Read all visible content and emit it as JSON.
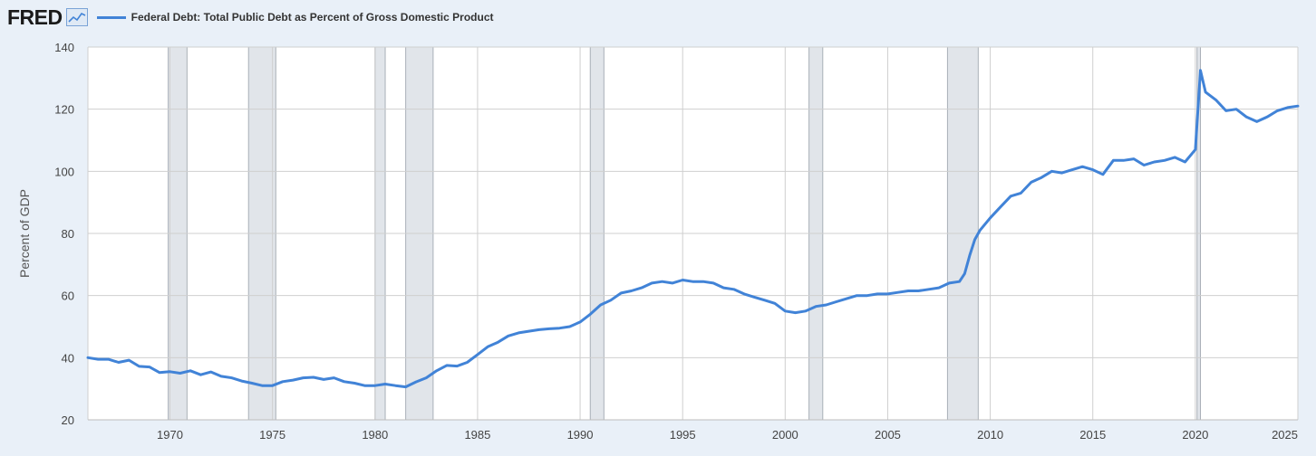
{
  "app": {
    "logo_text": "FRED"
  },
  "chart_data": {
    "type": "line",
    "title": "",
    "xlabel": "",
    "ylabel": "Percent of GDP",
    "xlim": [
      1966,
      2025
    ],
    "ylim": [
      20,
      140
    ],
    "grid": true,
    "legend_position": "top-left",
    "color": "#4183d7",
    "x_ticks": [
      "1970",
      "1975",
      "1980",
      "1985",
      "1990",
      "1995",
      "2000",
      "2005",
      "2010",
      "2015",
      "2020",
      "2025"
    ],
    "y_ticks": [
      "20",
      "40",
      "60",
      "80",
      "100",
      "120",
      "140"
    ],
    "recessions": [
      [
        "1969-12-01",
        "1970-11-01"
      ],
      [
        "1973-11-01",
        "1975-03-01"
      ],
      [
        "1980-01-01",
        "1980-07-01"
      ],
      [
        "1981-07-01",
        "1982-11-01"
      ],
      [
        "1990-07-01",
        "1991-03-01"
      ],
      [
        "2001-03-01",
        "2001-11-01"
      ],
      [
        "2007-12-01",
        "2009-06-01"
      ],
      [
        "2020-02-01",
        "2020-04-01"
      ]
    ],
    "series": [
      {
        "name": "Federal Debt: Total Public Debt as Percent of Gross Domestic Product",
        "x": [
          "1966-01-01",
          "1966-07-01",
          "1967-01-01",
          "1967-07-01",
          "1968-01-01",
          "1968-07-01",
          "1969-01-01",
          "1969-07-01",
          "1970-01-01",
          "1970-07-01",
          "1971-01-01",
          "1971-07-01",
          "1972-01-01",
          "1972-07-01",
          "1973-01-01",
          "1973-07-01",
          "1974-01-01",
          "1974-07-01",
          "1975-01-01",
          "1975-07-01",
          "1976-01-01",
          "1976-07-01",
          "1977-01-01",
          "1977-07-01",
          "1978-01-01",
          "1978-07-01",
          "1979-01-01",
          "1979-07-01",
          "1980-01-01",
          "1980-07-01",
          "1981-01-01",
          "1981-07-01",
          "1982-01-01",
          "1982-07-01",
          "1983-01-01",
          "1983-07-01",
          "1984-01-01",
          "1984-07-01",
          "1985-01-01",
          "1985-07-01",
          "1986-01-01",
          "1986-07-01",
          "1987-01-01",
          "1987-07-01",
          "1988-01-01",
          "1988-07-01",
          "1989-01-01",
          "1989-07-01",
          "1990-01-01",
          "1990-07-01",
          "1991-01-01",
          "1991-07-01",
          "1992-01-01",
          "1992-07-01",
          "1993-01-01",
          "1993-07-01",
          "1994-01-01",
          "1994-07-01",
          "1995-01-01",
          "1995-07-01",
          "1996-01-01",
          "1996-07-01",
          "1997-01-01",
          "1997-07-01",
          "1998-01-01",
          "1998-07-01",
          "1999-01-01",
          "1999-07-01",
          "2000-01-01",
          "2000-07-01",
          "2001-01-01",
          "2001-07-01",
          "2002-01-01",
          "2002-07-01",
          "2003-01-01",
          "2003-07-01",
          "2004-01-01",
          "2004-07-01",
          "2005-01-01",
          "2005-07-01",
          "2006-01-01",
          "2006-07-01",
          "2007-01-01",
          "2007-07-01",
          "2008-01-01",
          "2008-07-01",
          "2008-10-01",
          "2009-01-01",
          "2009-04-01",
          "2009-07-01",
          "2010-01-01",
          "2010-07-01",
          "2011-01-01",
          "2011-07-01",
          "2012-01-01",
          "2012-07-01",
          "2013-01-01",
          "2013-07-01",
          "2014-01-01",
          "2014-07-01",
          "2015-01-01",
          "2015-07-01",
          "2016-01-01",
          "2016-07-01",
          "2017-01-01",
          "2017-07-01",
          "2018-01-01",
          "2018-07-01",
          "2019-01-01",
          "2019-07-01",
          "2020-01-01",
          "2020-04-01",
          "2020-07-01",
          "2021-01-01",
          "2021-07-01",
          "2022-01-01",
          "2022-07-01",
          "2023-01-01",
          "2023-07-01",
          "2024-01-01",
          "2024-07-01",
          "2025-01-01"
        ],
        "values": [
          40.0,
          39.5,
          39.5,
          38.5,
          39.2,
          37.2,
          37.0,
          35.2,
          35.5,
          35.0,
          35.8,
          34.5,
          35.4,
          34.0,
          33.5,
          32.5,
          31.8,
          31.0,
          31.0,
          32.3,
          32.8,
          33.5,
          33.7,
          33.0,
          33.5,
          32.3,
          31.8,
          31.0,
          31.0,
          31.5,
          31.0,
          30.6,
          32.2,
          33.5,
          35.8,
          37.5,
          37.3,
          38.5,
          41.0,
          43.5,
          45.0,
          47.0,
          48.0,
          48.5,
          49.0,
          49.3,
          49.5,
          50.0,
          51.5,
          54.0,
          57.0,
          58.5,
          60.8,
          61.5,
          62.5,
          64.0,
          64.5,
          64.0,
          65.0,
          64.5,
          64.5,
          64.0,
          62.5,
          62.0,
          60.5,
          59.5,
          58.5,
          57.5,
          55.0,
          54.5,
          55.0,
          56.5,
          57.0,
          58.0,
          59.0,
          60.0,
          60.0,
          60.5,
          60.5,
          61.0,
          61.5,
          61.5,
          62.0,
          62.5,
          64.0,
          64.5,
          67.0,
          73.0,
          78.0,
          81.0,
          85.0,
          88.5,
          92.0,
          93.0,
          96.5,
          98.0,
          100.0,
          99.5,
          100.5,
          101.5,
          100.5,
          99.0,
          103.5,
          103.5,
          104.0,
          102.0,
          103.0,
          103.5,
          104.5,
          103.0,
          107.0,
          132.5,
          125.5,
          123.0,
          119.5,
          120.0,
          117.5,
          116.0,
          117.5,
          119.5,
          120.5,
          121.0
        ]
      }
    ]
  }
}
